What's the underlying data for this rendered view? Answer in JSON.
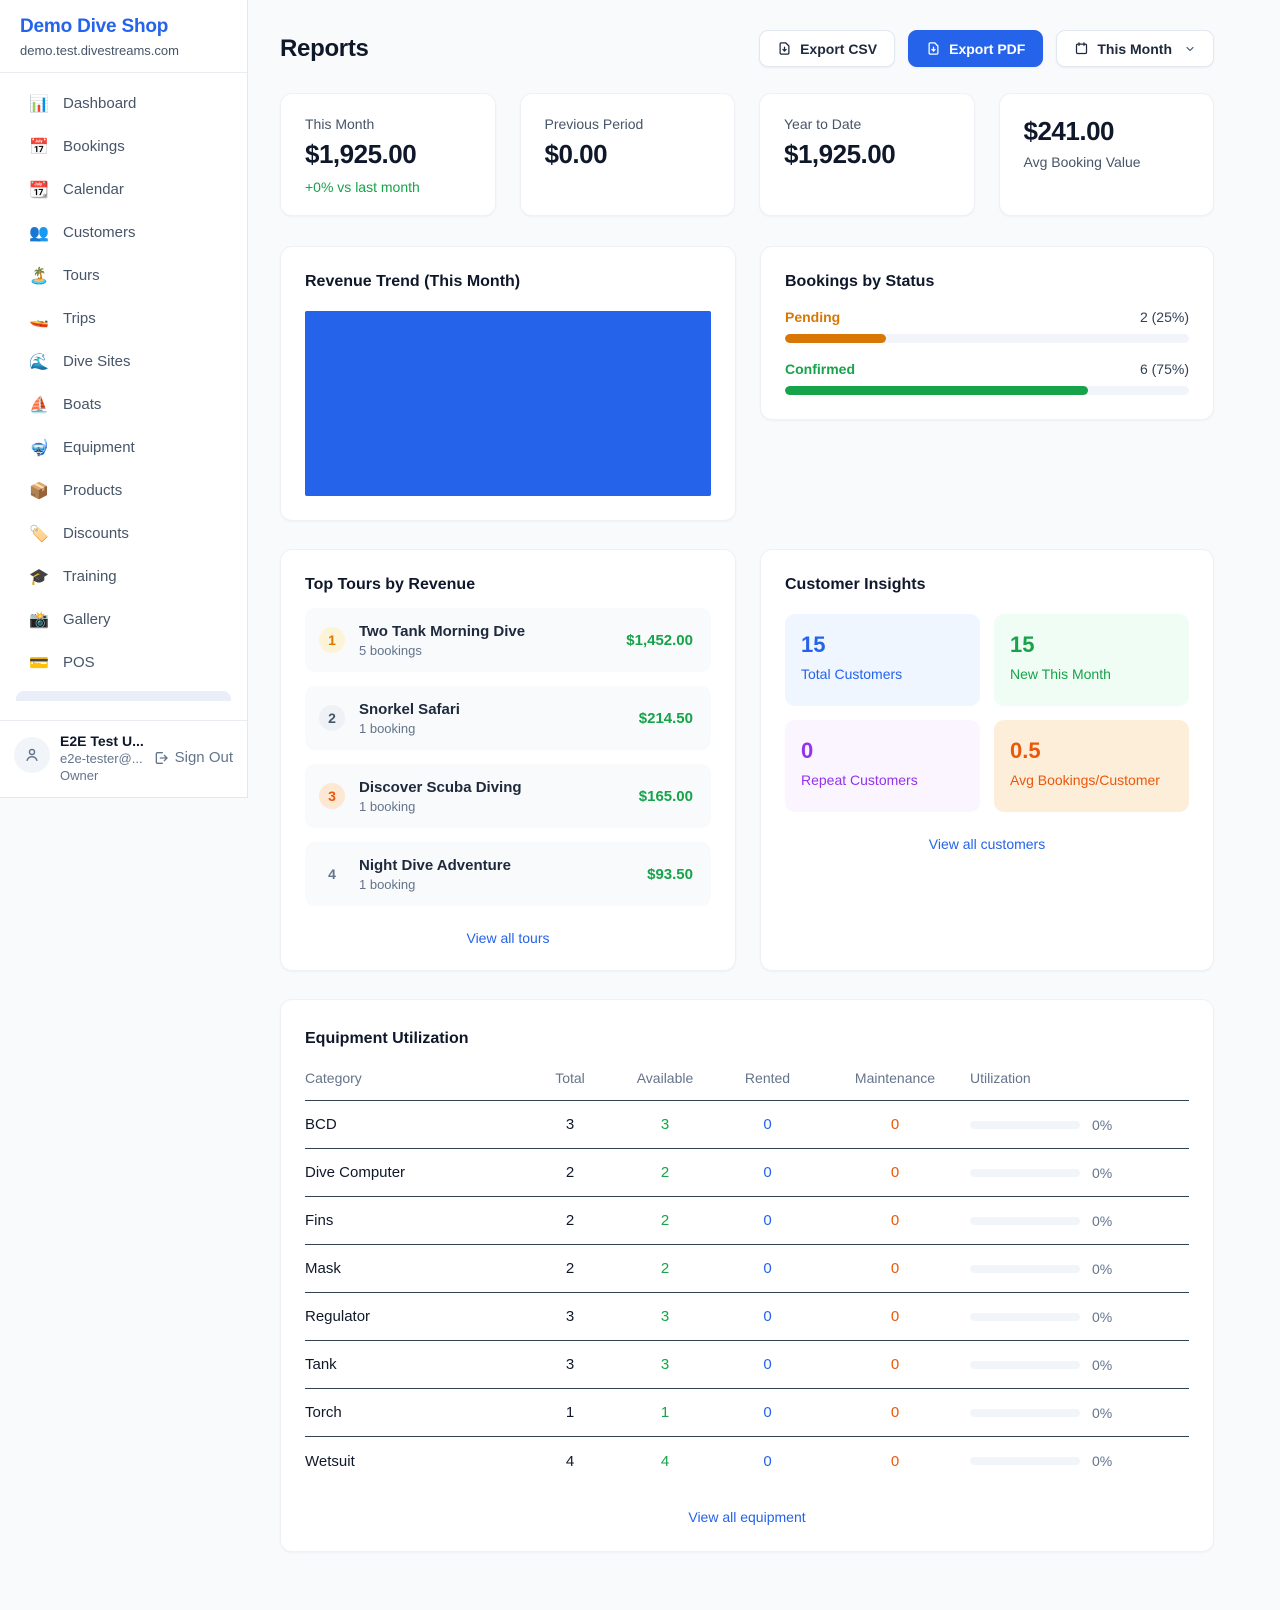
{
  "colors": {
    "accent": "#2563eb",
    "green": "#16a34a",
    "pending_orange": "#d97706",
    "maintenance_orange": "#ea580c",
    "purple": "#9333ea",
    "chart_blue": "#2563eb"
  },
  "sidebar": {
    "brand": {
      "name": "Demo Dive Shop",
      "domain": "demo.test.divestreams.com"
    },
    "nav": [
      {
        "icon": "📊",
        "label": "Dashboard"
      },
      {
        "icon": "📅",
        "label": "Bookings"
      },
      {
        "icon": "📆",
        "label": "Calendar"
      },
      {
        "icon": "👥",
        "label": "Customers"
      },
      {
        "icon": "🏝️",
        "label": "Tours"
      },
      {
        "icon": "🚤",
        "label": "Trips"
      },
      {
        "icon": "🌊",
        "label": "Dive Sites"
      },
      {
        "icon": "⛵",
        "label": "Boats"
      },
      {
        "icon": "🤿",
        "label": "Equipment"
      },
      {
        "icon": "📦",
        "label": "Products"
      },
      {
        "icon": "🏷️",
        "label": "Discounts"
      },
      {
        "icon": "🎓",
        "label": "Training"
      },
      {
        "icon": "📸",
        "label": "Gallery"
      },
      {
        "icon": "💳",
        "label": "POS"
      }
    ],
    "user": {
      "name": "E2E Test U...",
      "email": "e2e-tester@...",
      "role": "Owner",
      "sign_out": "Sign Out"
    }
  },
  "header": {
    "title": "Reports",
    "export_csv": "Export CSV",
    "export_pdf": "Export PDF",
    "period": "This Month"
  },
  "stats": [
    {
      "label": "This Month",
      "value": "$1,925.00",
      "delta": "+0% vs last month"
    },
    {
      "label": "Previous Period",
      "value": "$0.00"
    },
    {
      "label": "Year to Date",
      "value": "$1,925.00"
    },
    {
      "label": "Avg Booking Value",
      "value": "$241.00"
    }
  ],
  "revenue_trend": {
    "title": "Revenue Trend (This Month)"
  },
  "bookings_by_status": {
    "title": "Bookings by Status",
    "pending": {
      "label": "Pending",
      "count_text": "2 (25%)",
      "count": 2,
      "percent": 25
    },
    "confirmed": {
      "label": "Confirmed",
      "count_text": "6 (75%)",
      "count": 6,
      "percent": 75
    }
  },
  "top_tours": {
    "title": "Top Tours by Revenue",
    "view_all": "View all tours",
    "rows": [
      {
        "rank": "1",
        "name": "Two Tank Morning Dive",
        "bookings": "5 bookings",
        "revenue": "$1,452.00"
      },
      {
        "rank": "2",
        "name": "Snorkel Safari",
        "bookings": "1 booking",
        "revenue": "$214.50"
      },
      {
        "rank": "3",
        "name": "Discover Scuba Diving",
        "bookings": "1 booking",
        "revenue": "$165.00"
      },
      {
        "rank": "4",
        "name": "Night Dive Adventure",
        "bookings": "1 booking",
        "revenue": "$93.50"
      }
    ]
  },
  "customer_insights": {
    "title": "Customer Insights",
    "view_all": "View all customers",
    "tiles": [
      {
        "value": "15",
        "label": "Total Customers"
      },
      {
        "value": "15",
        "label": "New This Month"
      },
      {
        "value": "0",
        "label": "Repeat Customers"
      },
      {
        "value": "0.5",
        "label": "Avg Bookings/Customer"
      }
    ]
  },
  "equipment": {
    "title": "Equipment Utilization",
    "view_all": "View all equipment",
    "headers": [
      "Category",
      "Total",
      "Available",
      "Rented",
      "Maintenance",
      "Utilization"
    ],
    "rows": [
      {
        "category": "BCD",
        "total": "3",
        "available": "3",
        "rented": "0",
        "maintenance": "0",
        "utilization": "0%",
        "utilization_pct": 0
      },
      {
        "category": "Dive Computer",
        "total": "2",
        "available": "2",
        "rented": "0",
        "maintenance": "0",
        "utilization": "0%",
        "utilization_pct": 0
      },
      {
        "category": "Fins",
        "total": "2",
        "available": "2",
        "rented": "0",
        "maintenance": "0",
        "utilization": "0%",
        "utilization_pct": 0
      },
      {
        "category": "Mask",
        "total": "2",
        "available": "2",
        "rented": "0",
        "maintenance": "0",
        "utilization": "0%",
        "utilization_pct": 0
      },
      {
        "category": "Regulator",
        "total": "3",
        "available": "3",
        "rented": "0",
        "maintenance": "0",
        "utilization": "0%",
        "utilization_pct": 0
      },
      {
        "category": "Tank",
        "total": "3",
        "available": "3",
        "rented": "0",
        "maintenance": "0",
        "utilization": "0%",
        "utilization_pct": 0
      },
      {
        "category": "Torch",
        "total": "1",
        "available": "1",
        "rented": "0",
        "maintenance": "0",
        "utilization": "0%",
        "utilization_pct": 0
      },
      {
        "category": "Wetsuit",
        "total": "4",
        "available": "4",
        "rented": "0",
        "maintenance": "0",
        "utilization": "0%",
        "utilization_pct": 0
      }
    ]
  }
}
